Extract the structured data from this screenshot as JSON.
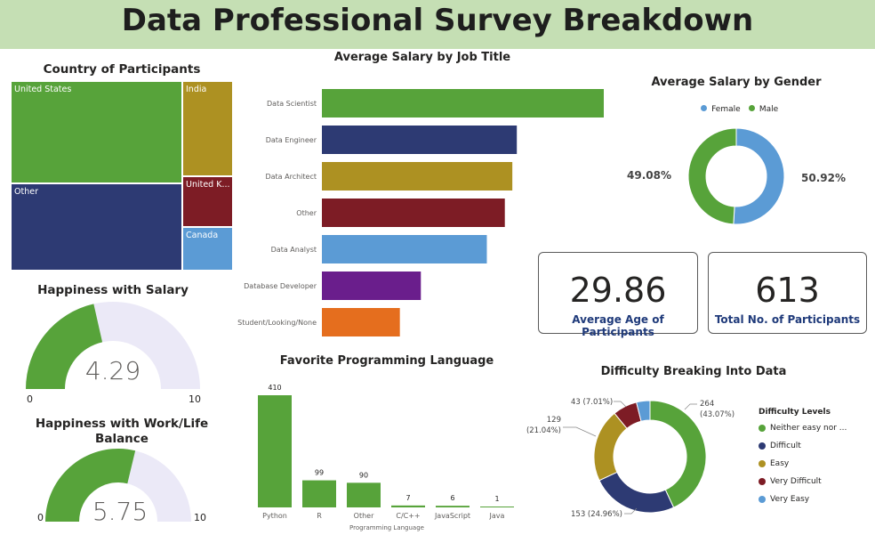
{
  "header": {
    "title": "Data Professional Survey Breakdown"
  },
  "colors": {
    "green": "#57a33a",
    "navy": "#2d3a73",
    "gold": "#ad9122",
    "maroon": "#7d1c25",
    "blue": "#5b9bd5",
    "purple": "#6a1e8c",
    "orange": "#e56e1e",
    "gauge_bg": "#ebe9f7"
  },
  "chart_data": [
    {
      "id": "country",
      "type": "treemap",
      "title": "Country of Participants",
      "categories": [
        "United States",
        "Other",
        "India",
        "United K...",
        "Canada"
      ]
    },
    {
      "id": "salary_by_job",
      "type": "bar",
      "orientation": "horizontal",
      "title": "Average Salary by Job Title",
      "categories": [
        "Data Scientist",
        "Data Engineer",
        "Data Architect",
        "Other",
        "Data Analyst",
        "Database Developer",
        "Student/Looking/None"
      ],
      "values": [
        94,
        65,
        63.5,
        61,
        55,
        33,
        26
      ],
      "colors": [
        "#57a33a",
        "#2d3a73",
        "#ad9122",
        "#7d1c25",
        "#5b9bd5",
        "#6a1e8c",
        "#e56e1e"
      ],
      "xlim": [
        0,
        94
      ]
    },
    {
      "id": "salary_by_gender",
      "type": "pie",
      "style": "donut",
      "title": "Average Salary by Gender",
      "labels": [
        "Female",
        "Male"
      ],
      "values": [
        50.92,
        49.08
      ],
      "data_labels": [
        "50.92%",
        "49.08%"
      ],
      "colors": [
        "#5b9bd5",
        "#57a33a"
      ],
      "legend": "top"
    },
    {
      "id": "happiness_salary",
      "type": "gauge",
      "title": "Happiness with Salary",
      "value": 4.29,
      "value_label": "4.29",
      "min": 0,
      "max": 10,
      "min_label": "0",
      "max_label": "10"
    },
    {
      "id": "happiness_worklife",
      "type": "gauge",
      "title": "Happiness with Work/Life Balance",
      "value": 5.75,
      "value_label": "5.75",
      "min": 0,
      "max": 10,
      "min_label": "0",
      "max_label": "10"
    },
    {
      "id": "programming_language",
      "type": "bar",
      "title": "Favorite Programming Language",
      "xlabel": "Programming Language",
      "categories": [
        "Python",
        "R",
        "Other",
        "C/C++",
        "JavaScript",
        "Java"
      ],
      "values": [
        410,
        99,
        90,
        7,
        6,
        1
      ],
      "data_labels": [
        "410",
        "99",
        "90",
        "7",
        "6",
        "1"
      ],
      "ylim": [
        0,
        410
      ],
      "color": "#57a33a"
    },
    {
      "id": "difficulty",
      "type": "pie",
      "style": "donut",
      "title": "Difficulty Breaking Into Data",
      "legend_title": "Difficulty Levels",
      "labels": [
        "Neither easy nor ...",
        "Difficult",
        "Easy",
        "Very Difficult",
        "Very Easy"
      ],
      "values": [
        264,
        153,
        129,
        43,
        24
      ],
      "colors": [
        "#57a33a",
        "#2d3a73",
        "#ad9122",
        "#7d1c25",
        "#5b9bd5"
      ],
      "data_labels": [
        [
          "264",
          "(43.07%)"
        ],
        [
          "153 (24.96%)"
        ],
        [
          "129",
          "(21.04%)"
        ],
        [
          "43 (7.01%)"
        ]
      ],
      "legend": "right"
    }
  ],
  "cards": {
    "avg_age": {
      "value": "29.86",
      "label": "Average Age of Participants"
    },
    "total": {
      "value": "613",
      "label": "Total No. of Participants"
    }
  }
}
